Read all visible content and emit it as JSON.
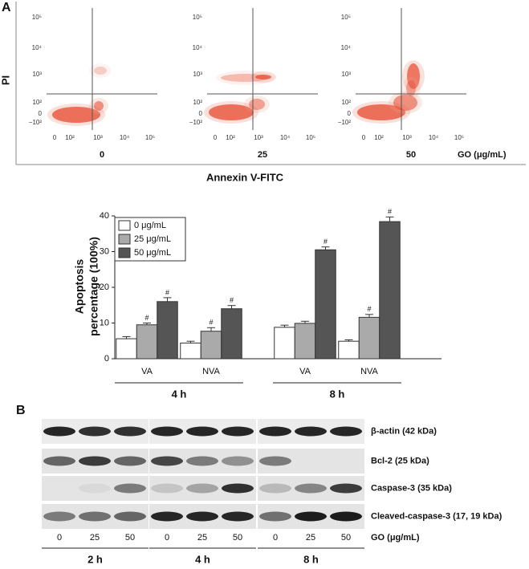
{
  "panel_a": {
    "label": "A",
    "y_label": "PI",
    "x_label": "Annexin V-FITC",
    "concentration_unit": "GO (μg/mL)",
    "plots": [
      {
        "concentration": "0"
      },
      {
        "concentration": "25"
      },
      {
        "concentration": "50"
      }
    ],
    "xtick_labels": [
      "0",
      "10²",
      "10³",
      "10⁴",
      "10⁵"
    ],
    "ytick_labels": [
      "10⁵",
      "10⁴",
      "10³",
      "10²",
      "0",
      "−10²"
    ]
  },
  "chart_data": {
    "type": "bar",
    "ylabel": [
      "Apoptosis",
      "percentage (100%)"
    ],
    "categories": [
      "VA",
      "NVA",
      "VA",
      "NVA"
    ],
    "groups": [
      "4 h",
      "8 h"
    ],
    "ylim": [
      0,
      40
    ],
    "yticks": [
      0,
      10,
      20,
      30,
      40
    ],
    "series": [
      {
        "name": "0 μg/mL",
        "color": "#ffffff",
        "values": [
          5.6,
          4.4,
          8.8,
          4.9
        ],
        "errors": [
          0.6,
          0.5,
          0.6,
          0.4
        ],
        "significance": [
          null,
          null,
          null,
          null
        ]
      },
      {
        "name": "25 μg/mL",
        "color": "#aaaaaa",
        "values": [
          9.5,
          7.7,
          9.9,
          11.6
        ],
        "errors": [
          0.5,
          1.0,
          0.6,
          0.8
        ],
        "significance": [
          "#",
          "#",
          null,
          "#"
        ]
      },
      {
        "name": "50 μg/mL",
        "color": "#555555",
        "values": [
          16.0,
          14.0,
          30.5,
          38.4
        ],
        "errors": [
          1.1,
          0.9,
          0.8,
          1.3
        ],
        "significance": [
          "#",
          "#",
          "#",
          "#"
        ]
      }
    ]
  },
  "panel_b": {
    "label": "B",
    "rows": [
      "β-actin (42 kDa)",
      "Bcl-2 (25 kDa)",
      "Caspase-3 (35 kDa)",
      "Cleaved-caspase-3 (17, 19 kDa)"
    ],
    "lanes": [
      "0",
      "25",
      "50"
    ],
    "lane_unit": "GO (μg/mL)",
    "timepoints": [
      "2 h",
      "4 h",
      "8 h"
    ]
  }
}
